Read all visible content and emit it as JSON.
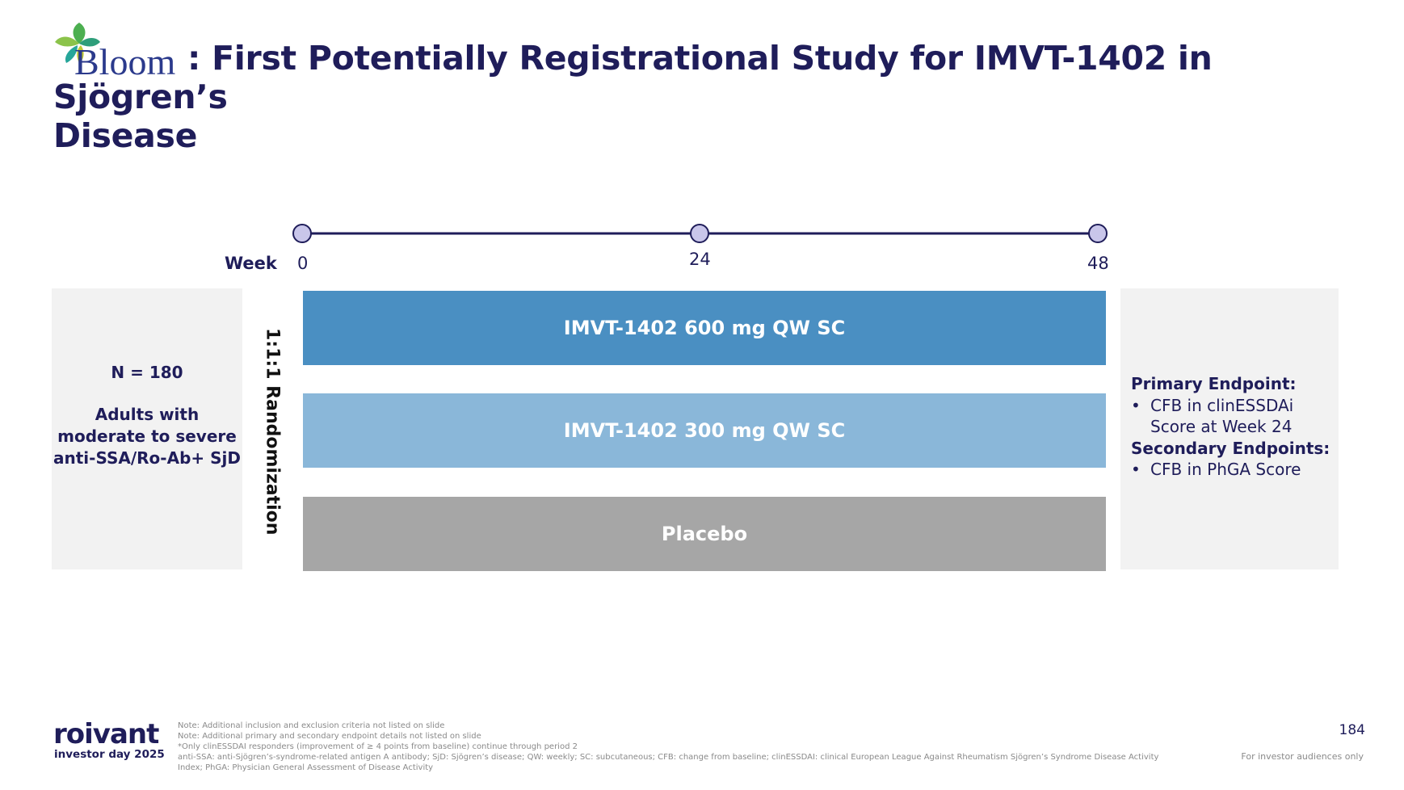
{
  "header": {
    "logo_text": "Bloom",
    "title_line1": ": First Potentially Registrational Study for IMVT-1402 in Sjögren’s",
    "title_line2": "Disease"
  },
  "timeline": {
    "week_label": "Week",
    "ticks": [
      "0",
      "24",
      "48"
    ]
  },
  "population": {
    "n_label": "N = 180",
    "description": "Adults with moderate to severe anti-SSA/Ro-Ab+ SjD"
  },
  "randomization_label": "1:1:1 Randomization",
  "arms": [
    {
      "label": "IMVT-1402 600 mg QW SC",
      "color": "#4a8fc2"
    },
    {
      "label": "IMVT-1402 300 mg QW SC",
      "color": "#8ab7d9"
    },
    {
      "label": "Placebo",
      "color": "#a6a6a6"
    }
  ],
  "endpoints": {
    "primary_heading": "Primary Endpoint:",
    "primary_items": [
      "CFB in clinESSDAi Score at Week 24"
    ],
    "secondary_heading": "Secondary Endpoints:",
    "secondary_items": [
      "CFB in PhGA Score"
    ]
  },
  "footer": {
    "brand": "roivant",
    "event": "investor day 2025",
    "notes": [
      "Note: Additional inclusion and exclusion criteria not listed on slide",
      "Note: Additional primary and secondary endpoint details not listed on slide",
      "*Only clinESSDAI responders (improvement of ≥ 4 points from baseline) continue through period 2",
      "anti-SSA: anti-Sjögren’s-syndrome-related antigen A antibody; SjD: Sjögren’s disease; QW: weekly; SC: subcutaneous; CFB: change from baseline; clinESSDAI: clinical European League Against Rheumatism Sjögren’s Syndrome Disease Activity",
      "Index; PhGA: Physician General Assessment of Disease Activity"
    ],
    "page_number": "184",
    "audience": "For investor audiences only"
  },
  "colors": {
    "navy": "#1f1d5a",
    "timeline_node": "#c9c6ea",
    "panel_bg": "#f2f2f2"
  }
}
